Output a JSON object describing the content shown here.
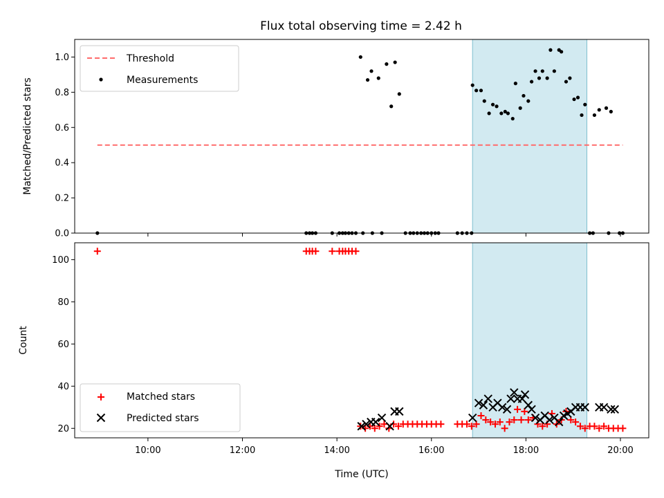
{
  "chart_data": {
    "title": "Flux total observing time = 2.42 h",
    "colors": {
      "threshold": "#ff6b6b",
      "measurement": "#000000",
      "matched": "#ff0000",
      "predicted": "#000000",
      "span": "#add8e6"
    },
    "x_range_hours": [
      8.45,
      20.6
    ],
    "xtick_labels": [
      "10:00",
      "12:00",
      "14:00",
      "16:00",
      "18:00",
      "20:00"
    ],
    "xtick_hours": [
      10,
      12,
      14,
      16,
      18,
      20
    ],
    "xlabel": "Time (UTC)",
    "highlight_span_hours": [
      16.87,
      19.29
    ],
    "panels": [
      {
        "type": "scatter",
        "ylabel": "Matched/Predicted stars",
        "ylim": [
          0,
          1.1
        ],
        "yticks": [
          0.0,
          0.2,
          0.4,
          0.6,
          0.8,
          1.0
        ],
        "ytick_labels": [
          "0.0",
          "0.2",
          "0.4",
          "0.6",
          "0.8",
          "1.0"
        ],
        "legend": {
          "placement": "upper left",
          "threshold_label": "Threshold",
          "measurements_label": "Measurements"
        },
        "threshold": {
          "x": [
            8.93,
            20.05
          ],
          "y": 0.5
        },
        "measurements": [
          [
            8.93,
            0
          ],
          [
            13.35,
            0
          ],
          [
            13.42,
            0
          ],
          [
            13.48,
            0
          ],
          [
            13.55,
            0
          ],
          [
            13.9,
            0
          ],
          [
            14.05,
            0
          ],
          [
            14.12,
            0
          ],
          [
            14.18,
            0
          ],
          [
            14.25,
            0
          ],
          [
            14.32,
            0
          ],
          [
            14.4,
            0
          ],
          [
            14.55,
            0
          ],
          [
            14.75,
            0
          ],
          [
            14.95,
            0
          ],
          [
            14.5,
            1.0
          ],
          [
            14.65,
            0.87
          ],
          [
            14.73,
            0.92
          ],
          [
            14.88,
            0.88
          ],
          [
            15.05,
            0.96
          ],
          [
            15.15,
            0.72
          ],
          [
            15.23,
            0.97
          ],
          [
            15.32,
            0.79
          ],
          [
            15.45,
            0
          ],
          [
            15.55,
            0
          ],
          [
            15.62,
            0
          ],
          [
            15.7,
            0
          ],
          [
            15.78,
            0
          ],
          [
            15.85,
            0
          ],
          [
            15.92,
            0
          ],
          [
            16.0,
            0
          ],
          [
            16.08,
            0
          ],
          [
            16.15,
            0
          ],
          [
            16.55,
            0
          ],
          [
            16.65,
            0
          ],
          [
            16.75,
            0
          ],
          [
            16.85,
            0
          ],
          [
            16.87,
            0.84
          ],
          [
            16.95,
            0.81
          ],
          [
            17.05,
            0.81
          ],
          [
            17.12,
            0.75
          ],
          [
            17.22,
            0.68
          ],
          [
            17.3,
            0.73
          ],
          [
            17.38,
            0.72
          ],
          [
            17.48,
            0.68
          ],
          [
            17.56,
            0.69
          ],
          [
            17.62,
            0.68
          ],
          [
            17.72,
            0.65
          ],
          [
            17.78,
            0.85
          ],
          [
            17.88,
            0.71
          ],
          [
            17.95,
            0.78
          ],
          [
            18.05,
            0.75
          ],
          [
            18.12,
            0.86
          ],
          [
            18.2,
            0.92
          ],
          [
            18.28,
            0.88
          ],
          [
            18.35,
            0.92
          ],
          [
            18.45,
            0.88
          ],
          [
            18.52,
            1.04
          ],
          [
            18.6,
            0.92
          ],
          [
            18.7,
            1.04
          ],
          [
            18.75,
            1.03
          ],
          [
            18.85,
            0.86
          ],
          [
            18.93,
            0.88
          ],
          [
            19.02,
            0.76
          ],
          [
            19.1,
            0.77
          ],
          [
            19.18,
            0.67
          ],
          [
            19.25,
            0.73
          ],
          [
            19.45,
            0.67
          ],
          [
            19.55,
            0.7
          ],
          [
            19.7,
            0.71
          ],
          [
            19.8,
            0.69
          ],
          [
            19.35,
            0
          ],
          [
            19.42,
            0
          ],
          [
            19.75,
            0
          ],
          [
            19.98,
            0
          ],
          [
            20.05,
            0
          ]
        ]
      },
      {
        "type": "scatter",
        "ylabel": "Count",
        "ylim": [
          15.5,
          108
        ],
        "yticks": [
          20,
          40,
          60,
          80,
          100
        ],
        "ytick_labels": [
          "20",
          "40",
          "60",
          "80",
          "100"
        ],
        "legend": {
          "placement": "lower left",
          "matched_label": "Matched stars",
          "predicted_label": "Predicted stars"
        },
        "matched": [
          [
            8.93,
            104
          ],
          [
            13.35,
            104
          ],
          [
            13.42,
            104
          ],
          [
            13.48,
            104
          ],
          [
            13.55,
            104
          ],
          [
            13.9,
            104
          ],
          [
            14.05,
            104
          ],
          [
            14.12,
            104
          ],
          [
            14.18,
            104
          ],
          [
            14.25,
            104
          ],
          [
            14.32,
            104
          ],
          [
            14.4,
            104
          ],
          [
            14.5,
            21
          ],
          [
            14.6,
            20
          ],
          [
            14.7,
            21
          ],
          [
            14.8,
            20
          ],
          [
            14.9,
            21
          ],
          [
            15.0,
            22
          ],
          [
            15.1,
            20
          ],
          [
            15.2,
            22
          ],
          [
            15.3,
            21
          ],
          [
            15.4,
            22
          ],
          [
            15.5,
            22
          ],
          [
            15.6,
            22
          ],
          [
            15.7,
            22
          ],
          [
            15.8,
            22
          ],
          [
            15.9,
            22
          ],
          [
            16.0,
            22
          ],
          [
            16.1,
            22
          ],
          [
            16.2,
            22
          ],
          [
            16.55,
            22
          ],
          [
            16.65,
            22
          ],
          [
            16.75,
            22
          ],
          [
            16.85,
            21
          ],
          [
            16.95,
            22
          ],
          [
            17.05,
            26
          ],
          [
            17.15,
            24
          ],
          [
            17.25,
            23
          ],
          [
            17.35,
            22
          ],
          [
            17.45,
            23
          ],
          [
            17.55,
            20
          ],
          [
            17.65,
            23
          ],
          [
            17.75,
            24
          ],
          [
            17.82,
            29
          ],
          [
            17.9,
            24
          ],
          [
            17.97,
            28
          ],
          [
            18.05,
            24
          ],
          [
            18.15,
            25
          ],
          [
            18.25,
            22
          ],
          [
            18.35,
            21
          ],
          [
            18.45,
            22
          ],
          [
            18.55,
            27
          ],
          [
            18.65,
            22
          ],
          [
            18.75,
            24
          ],
          [
            18.85,
            28
          ],
          [
            18.95,
            24
          ],
          [
            19.05,
            23
          ],
          [
            19.15,
            21
          ],
          [
            19.25,
            20
          ],
          [
            19.35,
            21
          ],
          [
            19.45,
            21
          ],
          [
            19.55,
            20
          ],
          [
            19.65,
            21
          ],
          [
            19.75,
            20
          ],
          [
            19.85,
            20
          ],
          [
            19.95,
            20
          ],
          [
            20.05,
            20
          ]
        ],
        "predicted": [
          [
            14.52,
            21
          ],
          [
            14.62,
            22
          ],
          [
            14.72,
            23
          ],
          [
            14.82,
            23
          ],
          [
            14.95,
            25
          ],
          [
            15.12,
            21
          ],
          [
            15.22,
            28
          ],
          [
            15.32,
            28
          ],
          [
            16.87,
            25
          ],
          [
            17.0,
            32
          ],
          [
            17.1,
            31
          ],
          [
            17.2,
            34
          ],
          [
            17.3,
            30
          ],
          [
            17.4,
            32
          ],
          [
            17.5,
            30
          ],
          [
            17.6,
            29
          ],
          [
            17.68,
            34
          ],
          [
            17.75,
            37
          ],
          [
            17.82,
            34
          ],
          [
            17.92,
            34
          ],
          [
            17.98,
            36
          ],
          [
            18.05,
            31
          ],
          [
            18.12,
            29
          ],
          [
            18.2,
            25
          ],
          [
            18.3,
            24
          ],
          [
            18.4,
            26
          ],
          [
            18.5,
            24
          ],
          [
            18.6,
            25
          ],
          [
            18.7,
            23
          ],
          [
            18.8,
            26
          ],
          [
            18.88,
            27
          ],
          [
            18.95,
            28
          ],
          [
            19.05,
            30
          ],
          [
            19.15,
            30
          ],
          [
            19.25,
            30
          ],
          [
            19.55,
            30
          ],
          [
            19.65,
            30
          ],
          [
            19.8,
            29
          ],
          [
            19.88,
            29
          ]
        ]
      }
    ]
  }
}
